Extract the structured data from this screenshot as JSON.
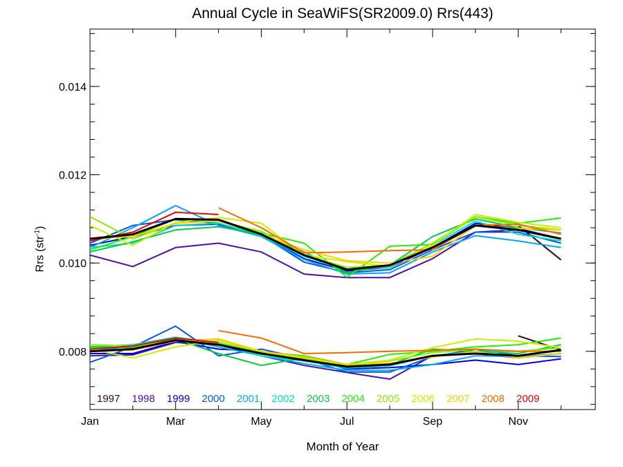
{
  "chart_data": {
    "type": "line",
    "title": "Annual Cycle in SeaWiFS(SR2009.0) Rrs(443)",
    "xlabel": "Month of Year",
    "ylabel_main": "Rrs (str",
    "ylabel_sup": "-1",
    "ylabel_close": ")",
    "xlim": [
      1,
      12.8
    ],
    "ylim": [
      0.00668,
      0.0153
    ],
    "x_ticks": [
      {
        "v": 1,
        "label": "Jan"
      },
      {
        "v": 3,
        "label": "Mar"
      },
      {
        "v": 5,
        "label": "May"
      },
      {
        "v": 7,
        "label": "Jul"
      },
      {
        "v": 9,
        "label": "Sep"
      },
      {
        "v": 11,
        "label": "Nov"
      }
    ],
    "x_minor_ticks": [
      2,
      4,
      6,
      8,
      10,
      12
    ],
    "y_ticks": [
      {
        "v": 0.008,
        "label": "0.008"
      },
      {
        "v": 0.01,
        "label": "0.010"
      },
      {
        "v": 0.012,
        "label": "0.012"
      },
      {
        "v": 0.014,
        "label": "0.014"
      }
    ],
    "y_minor_step": 0.0004,
    "grid": false,
    "legend_position": "bottom-left inside",
    "x": [
      1,
      2,
      3,
      4,
      5,
      6,
      7,
      8,
      9,
      10,
      11,
      12
    ],
    "mean_series_upper": {
      "name": "",
      "color": "#000000",
      "values": [
        0.01055,
        0.01065,
        0.011,
        0.01098,
        0.01065,
        0.01018,
        0.00985,
        0.00995,
        0.01035,
        0.01085,
        0.01075,
        0.01055
      ]
    },
    "mean_series_lower": {
      "name": "",
      "color": "#000000",
      "values": [
        0.008,
        0.00805,
        0.00825,
        0.00815,
        0.00795,
        0.0078,
        0.00765,
        0.0077,
        0.0079,
        0.00795,
        0.0079,
        0.00803
      ]
    },
    "series": [
      {
        "name": "1997",
        "color": "#330033",
        "upper": [
          null,
          null,
          null,
          null,
          null,
          null,
          null,
          null,
          null,
          null,
          0.01085,
          0.01007
        ],
        "lower": [
          null,
          null,
          null,
          null,
          null,
          null,
          null,
          null,
          null,
          null,
          0.00835,
          0.00803
        ]
      },
      {
        "name": "1998",
        "color": "#4b0fa8",
        "upper": [
          0.01018,
          0.00992,
          0.01035,
          0.01045,
          0.01025,
          0.00975,
          0.00967,
          0.00967,
          0.0101,
          0.0107,
          0.01075,
          0.01055
        ],
        "lower": [
          0.0079,
          0.00792,
          0.0082,
          0.00815,
          0.0079,
          0.00768,
          0.00752,
          0.00737,
          0.0079,
          0.00795,
          0.00785,
          0.00795
        ]
      },
      {
        "name": "1999",
        "color": "#0000dd",
        "upper": [
          0.0104,
          0.0106,
          0.01085,
          0.01088,
          0.01062,
          0.0101,
          0.00982,
          0.0099,
          0.01035,
          0.0109,
          0.01078,
          0.01055
        ],
        "lower": [
          0.00795,
          0.00795,
          0.00822,
          0.00805,
          0.008,
          0.00785,
          0.0076,
          0.00763,
          0.0077,
          0.0078,
          0.0077,
          0.00783
        ]
      },
      {
        "name": "2000",
        "color": "#0055ee",
        "upper": [
          0.01045,
          0.01085,
          0.01098,
          0.0109,
          0.01063,
          0.01002,
          0.00978,
          0.00985,
          0.0103,
          0.0107,
          0.0107,
          0.01045
        ],
        "lower": [
          0.00775,
          0.0081,
          0.00857,
          0.0079,
          0.00805,
          0.00783,
          0.00753,
          0.00753,
          0.00788,
          0.00805,
          0.0079,
          0.00788
        ]
      },
      {
        "name": "2001",
        "color": "#00aaee",
        "upper": [
          0.01035,
          0.0108,
          0.0113,
          0.01085,
          0.0106,
          0.01008,
          0.00975,
          0.00978,
          0.01025,
          0.01062,
          0.0105,
          0.01035
        ],
        "lower": [
          0.008,
          0.00812,
          0.0083,
          0.0081,
          0.0079,
          0.00772,
          0.00757,
          0.00757,
          0.0077,
          0.0079,
          0.00788,
          0.00795
        ]
      },
      {
        "name": "2002",
        "color": "#00e0c0",
        "upper": [
          0.01035,
          0.01045,
          0.01085,
          0.0109,
          0.01062,
          0.01015,
          0.00985,
          0.0099,
          0.0104,
          0.01095,
          0.01065,
          0.0105
        ],
        "lower": [
          0.0081,
          0.00815,
          0.00832,
          0.00818,
          0.0079,
          0.00778,
          0.00762,
          0.00767,
          0.0079,
          0.008,
          0.008,
          0.00808
        ]
      },
      {
        "name": "2003",
        "color": "#00cc44",
        "upper": [
          0.01025,
          0.01048,
          0.01075,
          0.01082,
          0.01065,
          0.01025,
          0.00978,
          0.00995,
          0.0106,
          0.011,
          0.0108,
          0.01068
        ],
        "lower": [
          0.0081,
          0.00808,
          0.00828,
          0.00795,
          0.00768,
          0.00785,
          0.00767,
          0.0077,
          0.00805,
          0.008,
          0.00795,
          0.00815
        ]
      },
      {
        "name": "2004",
        "color": "#22ee00",
        "upper": [
          0.0103,
          0.0106,
          0.011,
          0.01095,
          0.01068,
          0.01045,
          0.00968,
          0.01038,
          0.01042,
          0.01105,
          0.0109,
          0.01102
        ],
        "lower": [
          0.00808,
          0.0081,
          0.0083,
          0.0082,
          0.00798,
          0.0079,
          0.0077,
          0.00793,
          0.008,
          0.0081,
          0.00815,
          0.0083
        ]
      },
      {
        "name": "2005",
        "color": "#88ee00",
        "upper": [
          0.01105,
          0.01055,
          0.0109,
          0.01095,
          0.01072,
          0.01018,
          0.0099,
          0.00995,
          0.01045,
          0.01105,
          0.01085,
          0.01075
        ],
        "lower": [
          0.00815,
          0.00812,
          0.00823,
          0.0082,
          0.008,
          0.00785,
          0.0077,
          0.00778,
          0.00797,
          0.00805,
          0.008,
          0.00808
        ]
      },
      {
        "name": "2006",
        "color": "#ccee00",
        "upper": [
          0.01085,
          0.0104,
          0.01092,
          0.01103,
          0.0109,
          0.01018,
          0.01003,
          0.00993,
          0.0104,
          0.0111,
          0.01092,
          0.0108
        ],
        "lower": [
          0.00805,
          0.00785,
          0.0081,
          0.00825,
          0.008,
          0.00782,
          0.0077,
          0.0078,
          0.00808,
          0.00828,
          0.00823,
          0.00808
        ]
      },
      {
        "name": "2007",
        "color": "#ffcc00",
        "upper": [
          0.01055,
          0.0106,
          0.0109,
          0.01095,
          0.01065,
          0.0103,
          0.01005,
          0.01,
          0.01015,
          0.01085,
          0.01078,
          0.01075
        ],
        "lower": [
          0.008,
          0.00803,
          0.00823,
          0.00828,
          0.008,
          0.00787,
          0.0077,
          0.00773,
          0.00787,
          0.008,
          0.00785,
          0.00795
        ]
      },
      {
        "name": "2008",
        "color": "#ff6600",
        "upper": [
          null,
          null,
          null,
          0.01125,
          0.0108,
          0.01023,
          0.01025,
          0.01028,
          0.0103,
          0.01085,
          0.01088,
          0.01065
        ],
        "lower": [
          null,
          null,
          null,
          0.00847,
          0.0083,
          0.00795,
          0.00797,
          0.008,
          0.00802,
          0.00805,
          0.008,
          0.008
        ]
      },
      {
        "name": "2009",
        "color": "#ee0000",
        "upper": [
          0.0105,
          0.0107,
          0.01115,
          0.0111,
          null,
          null,
          null,
          null,
          null,
          null,
          null,
          null
        ],
        "lower": [
          0.00805,
          0.00812,
          0.0083,
          0.0082,
          null,
          null,
          null,
          null,
          null,
          null,
          null,
          null
        ]
      }
    ]
  }
}
